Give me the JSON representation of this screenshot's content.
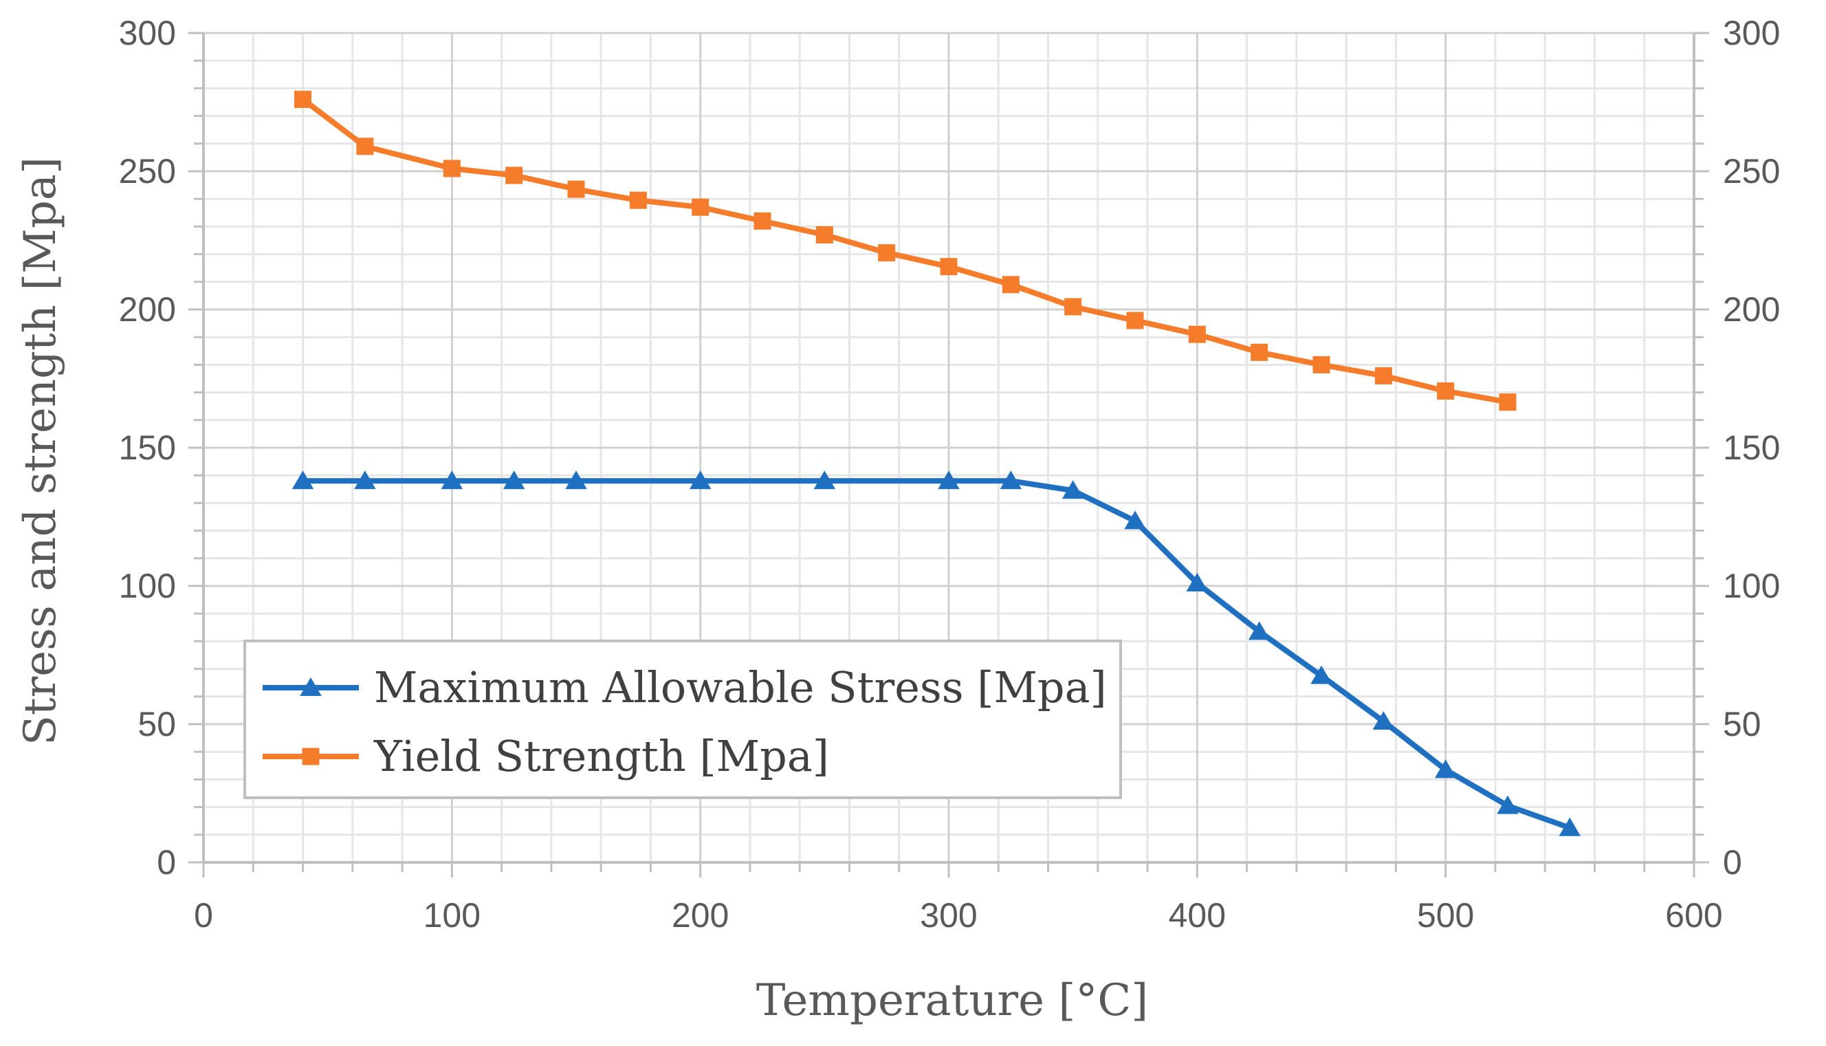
{
  "chart_data": {
    "type": "line",
    "title": "",
    "xlabel": "Temperature [°C]",
    "ylabel": "Stress and strength [Mpa]",
    "xlim": [
      0,
      600
    ],
    "ylim": [
      0,
      300
    ],
    "secondary_ylim": [
      0,
      300
    ],
    "x_ticks": [
      0,
      100,
      200,
      300,
      400,
      500,
      600
    ],
    "y_ticks": [
      0,
      50,
      100,
      150,
      200,
      250,
      300
    ],
    "x_tick_labels": [
      "0",
      "100",
      "200",
      "300",
      "400",
      "500",
      "600"
    ],
    "y_tick_labels": [
      "0",
      "50",
      "100",
      "150",
      "200",
      "250",
      "300"
    ],
    "grid": true,
    "legend_position": "lower-left",
    "series": [
      {
        "name": "Maximum Allowable Stress [Mpa]",
        "color": "#1f70c1",
        "marker": "triangle",
        "x": [
          40,
          65,
          100,
          125,
          150,
          200,
          250,
          300,
          325,
          350,
          375,
          400,
          425,
          450,
          475,
          500,
          525,
          550
        ],
        "values": [
          138,
          138,
          138,
          138,
          138,
          138,
          138,
          138,
          138,
          134.5,
          123.5,
          101,
          83.5,
          67.5,
          51,
          33.5,
          20.5,
          12.5
        ]
      },
      {
        "name": "Yield Strength [Mpa]",
        "color": "#f47c2a",
        "marker": "square",
        "x": [
          40,
          65,
          100,
          125,
          150,
          175,
          200,
          225,
          250,
          275,
          300,
          325,
          350,
          375,
          400,
          425,
          450,
          475,
          500,
          525
        ],
        "values": [
          276,
          259,
          251,
          248.5,
          243.5,
          239.5,
          237,
          232,
          227,
          220.5,
          215.5,
          209,
          201,
          196,
          191,
          184.5,
          180,
          176,
          170.5,
          166.5
        ]
      }
    ]
  }
}
